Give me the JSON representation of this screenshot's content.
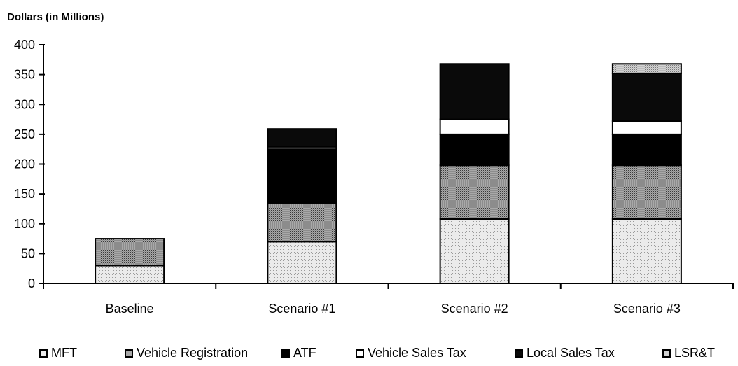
{
  "chart_data": {
    "type": "bar",
    "stacked": true,
    "ylabel": "Dollars (in Millions)",
    "xlabel": "",
    "ylim": [
      0,
      400
    ],
    "yticks": [
      0,
      50,
      100,
      150,
      200,
      250,
      300,
      350,
      400
    ],
    "ytick_labels": [
      "0",
      "50",
      "100",
      "150",
      "200",
      "250",
      "300",
      "350",
      "400"
    ],
    "categories": [
      "Baseline",
      "Scenario #1",
      "Scenario #2",
      "Scenario #3"
    ],
    "series": [
      {
        "name": "MFT",
        "values": [
          30,
          70,
          108,
          108
        ]
      },
      {
        "name": "Vehicle Registration",
        "values": [
          45,
          65,
          90,
          90
        ]
      },
      {
        "name": "ATF",
        "values": [
          0,
          90,
          52,
          52
        ]
      },
      {
        "name": "Vehicle Sales Tax",
        "values": [
          0,
          4,
          25,
          22
        ]
      },
      {
        "name": "Local Sales Tax",
        "values": [
          0,
          30,
          93,
          80
        ]
      },
      {
        "name": "LSR&T",
        "values": [
          0,
          0,
          0,
          16
        ]
      }
    ],
    "series_colors": [
      "#ebebeb",
      "#a8a8a8",
      "#000000",
      "#ffffff",
      "#0a0a0a",
      "#d2d2d2"
    ],
    "legend_position": "bottom",
    "grid": false
  }
}
